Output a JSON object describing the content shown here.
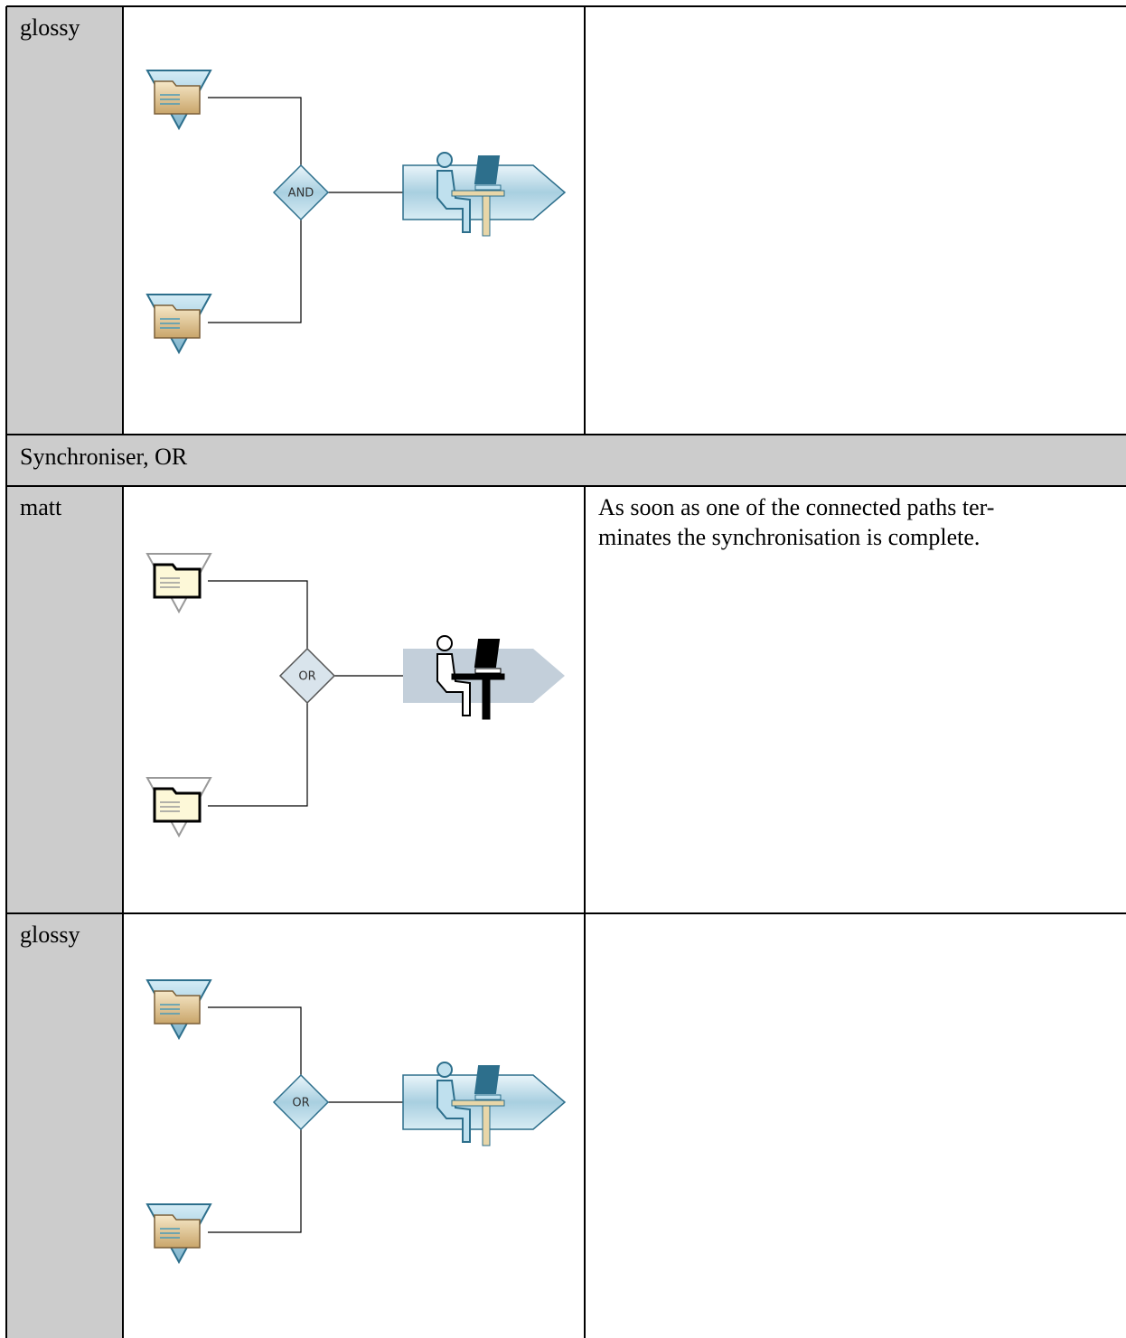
{
  "table": {
    "rows": [
      {
        "style": "glossy",
        "gate": "AND"
      },
      {
        "section": "Synchroniser, OR"
      },
      {
        "style": "matt",
        "gate": "OR",
        "description": [
          "As soon as one of the connected paths ter-",
          "minates the synchronisation is complete."
        ]
      },
      {
        "style": "glossy",
        "gate": "OR"
      }
    ]
  }
}
